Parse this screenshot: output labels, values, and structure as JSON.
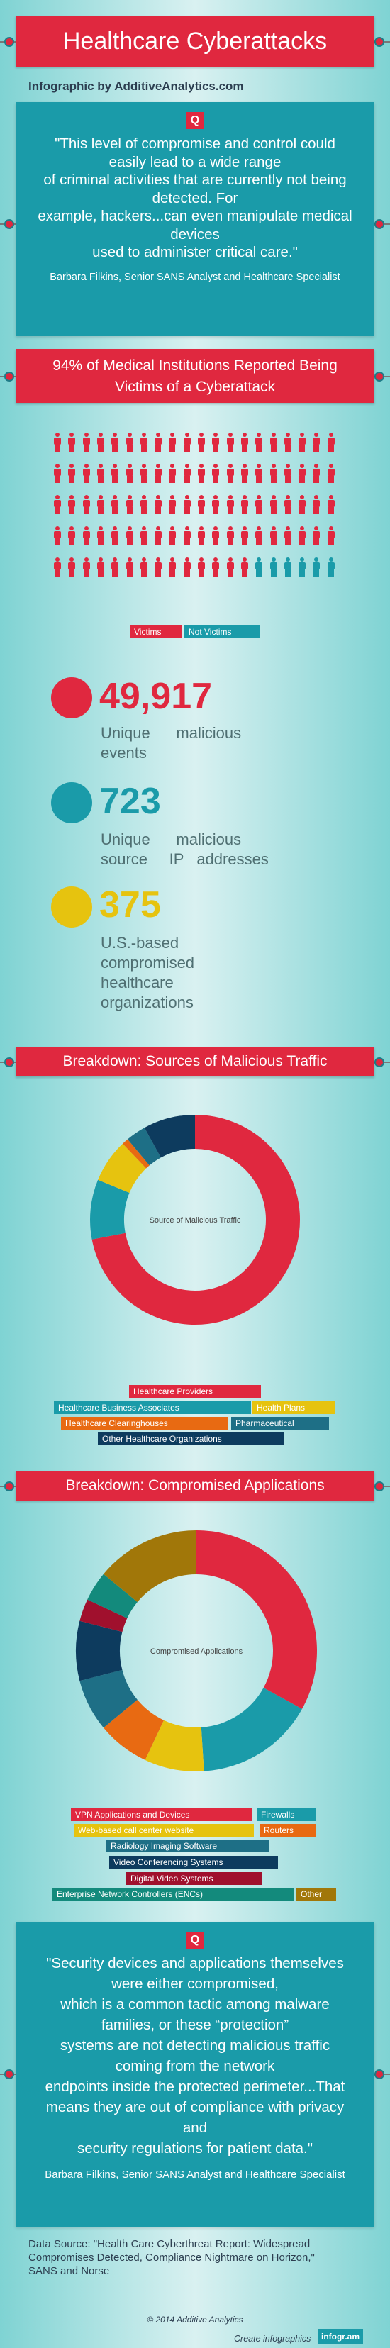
{
  "title": "Healthcare Cyberattacks",
  "byline": "Infographic by AdditiveAnalytics.com",
  "quote1": {
    "lines": [
      "\"This level of compromise and control could",
      "easily lead to a wide range",
      "of criminal activities that are currently not being",
      "detected. For",
      "example, hackers...can even manipulate medical",
      "devices",
      "used to administer critical care.\""
    ],
    "author": "Barbara Filkins, Senior SANS Analyst and Healthcare Specialist"
  },
  "headline94": [
    "94% of Medical Institutions Reported Being",
    "Victims of a Cyberattack"
  ],
  "pictograph": {
    "victims": 94,
    "not_victims": 6,
    "legend_victims": "Victims",
    "legend_not": "Not Victims",
    "victim_color": "#e0283f",
    "not_color": "#1a9ba9"
  },
  "stats": [
    {
      "value": "49,917",
      "lines": [
        "Unique      malicious",
        "events"
      ],
      "color": "#e0283f"
    },
    {
      "value": "723",
      "lines": [
        "Unique      malicious",
        "source     IP   addresses"
      ],
      "color": "#1a9ba9"
    },
    {
      "value": "375",
      "lines": [
        "U.S.-based",
        "compromised",
        "healthcare",
        "organizations"
      ],
      "color": "#e6c30f"
    }
  ],
  "section2_title": "Breakdown: Sources of Malicious Traffic",
  "section3_title": "Breakdown: Compromised Applications",
  "quote2": {
    "lines": [
      "\"Security devices and applications themselves",
      "were either compromised,",
      "which is a common tactic among malware",
      "families, or these “protection”",
      "systems are not detecting malicious traffic",
      "coming from the network",
      "endpoints inside the protected perimeter...That",
      "means they are out of compliance with privacy",
      "and",
      "security regulations for patient data.\""
    ],
    "author": "Barbara Filkins, Senior SANS Analyst and Healthcare Specialist"
  },
  "source": [
    "Data Source: \"Health Care Cyberthreat Report: Widespread",
    "Compromises Detected, Compliance Nightmare on Horizon,\"",
    "SANS and Norse"
  ],
  "copyright": "© 2014 Additive Analytics",
  "create": "Create infographics",
  "brand": "infogr.am",
  "chart_data": [
    {
      "type": "pie",
      "title": "Source of Malicious Traffic",
      "categories": [
        "Healthcare Providers",
        "Healthcare Business Associates",
        "Health Plans",
        "Healthcare Clearinghouses",
        "Pharmaceutical",
        "Other Healthcare Organizations"
      ],
      "values": [
        72.0,
        9.2,
        6.7,
        1.0,
        3.1,
        8.0
      ],
      "colors": [
        "#e0283f",
        "#1a9ba9",
        "#e6c30f",
        "#e86a12",
        "#1e6f86",
        "#0d3b5e"
      ]
    },
    {
      "type": "pie",
      "title": "Compromised Applications",
      "categories": [
        "VPN Applications and Devices",
        "Firewalls",
        "Web-based call center website",
        "Routers",
        "Radiology Imaging Software",
        "Video Conferencing Systems",
        "Digital Video Systems",
        "Enterprise Network Controllers (ENCs)",
        "Other"
      ],
      "values": [
        33,
        16,
        8,
        7,
        7,
        8,
        3,
        4,
        14
      ],
      "colors": [
        "#e0283f",
        "#1a9ba9",
        "#e6c30f",
        "#e86a12",
        "#1e6f86",
        "#0d3b5e",
        "#a0102d",
        "#138a7c",
        "#a17709"
      ]
    }
  ]
}
